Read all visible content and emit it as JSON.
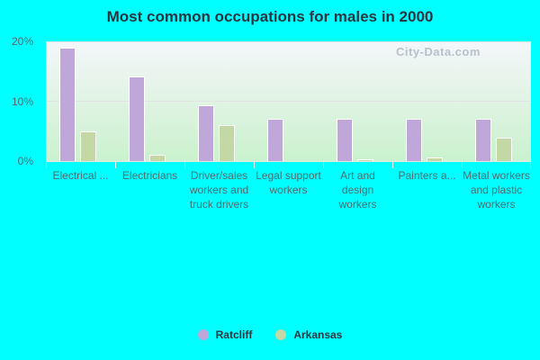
{
  "title": "Most common occupations for males in 2000",
  "watermark": "City-Data.com",
  "colors": {
    "Ratcliff": "#bfa8d9",
    "Arkansas": "#c4d8a6"
  },
  "y_ticks": [
    "20%",
    "10%",
    "0%"
  ],
  "legend": [
    {
      "name": "Ratcliff"
    },
    {
      "name": "Arkansas"
    }
  ],
  "chart_data": {
    "type": "bar",
    "title": "Most common occupations for males in 2000",
    "xlabel": "",
    "ylabel": "",
    "ylim": [
      0,
      20
    ],
    "y_ticks": [
      "0%",
      "10%",
      "20%"
    ],
    "grid": true,
    "legend_position": "bottom",
    "categories": [
      "Electrical ...",
      "Electricians",
      "Driver/sales workers and truck drivers",
      "Legal support workers",
      "Art and design workers",
      "Painters a...",
      "Metal workers and plastic workers"
    ],
    "series": [
      {
        "name": "Ratcliff",
        "values": [
          19.0,
          14.2,
          9.4,
          7.1,
          7.1,
          7.1,
          7.1
        ]
      },
      {
        "name": "Arkansas",
        "values": [
          4.9,
          1.0,
          6.0,
          0.0,
          0.3,
          0.6,
          3.9
        ]
      }
    ]
  }
}
